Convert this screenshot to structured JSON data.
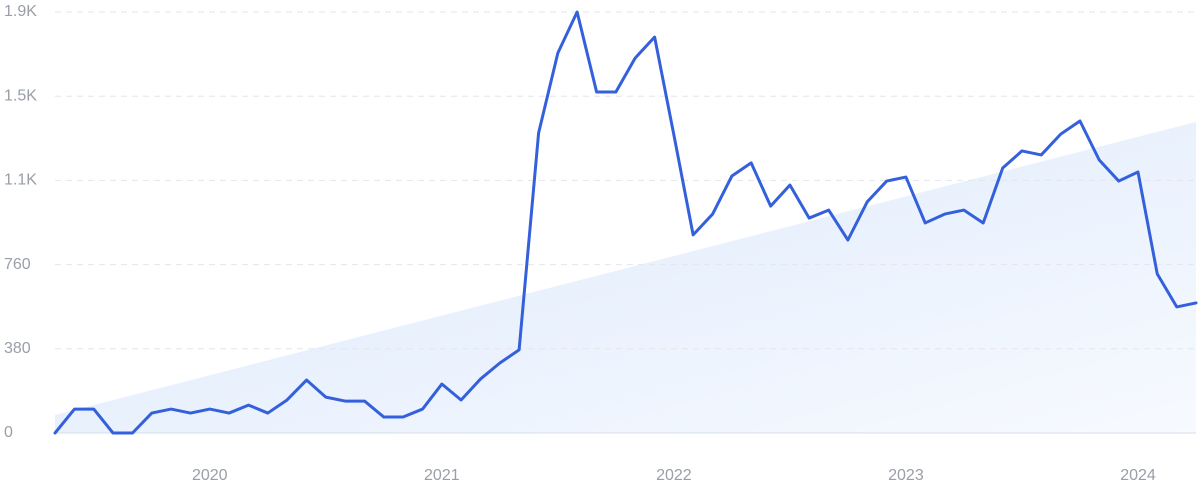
{
  "chart_data": {
    "type": "line",
    "x": [
      2019.333,
      2019.417,
      2019.5,
      2019.583,
      2019.667,
      2019.75,
      2019.833,
      2019.917,
      2020,
      2020.083,
      2020.167,
      2020.25,
      2020.333,
      2020.417,
      2020.5,
      2020.583,
      2020.667,
      2020.75,
      2020.833,
      2020.917,
      2021,
      2021.083,
      2021.167,
      2021.25,
      2021.333,
      2021.417,
      2021.5,
      2021.583,
      2021.667,
      2021.75,
      2021.833,
      2021.917,
      2022,
      2022.083,
      2022.167,
      2022.25,
      2022.333,
      2022.417,
      2022.5,
      2022.583,
      2022.667,
      2022.75,
      2022.833,
      2022.917,
      2023,
      2023.083,
      2023.167,
      2023.25,
      2023.333,
      2023.417,
      2023.5,
      2023.583,
      2023.667,
      2023.75,
      2023.833,
      2023.917,
      2024,
      2024.083,
      2024.167,
      2024.25
    ],
    "series": [
      {
        "color": "#3461db",
        "values": [
          0,
          108,
          108,
          0,
          0,
          90,
          108,
          90,
          108,
          90,
          126,
          90,
          149,
          239,
          162,
          144,
          144,
          72,
          72,
          108,
          221,
          149,
          244,
          316,
          375,
          1354,
          1715,
          1900,
          1539,
          1539,
          1692,
          1787,
          1345,
          894,
          988,
          1160,
          1219,
          1024,
          1119,
          970,
          1006,
          871,
          1043,
          1137,
          1155,
          948,
          988,
          1006,
          948,
          1196,
          1273,
          1255,
          1349,
          1408,
          1232,
          1137,
          1178,
          718,
          569,
          587
        ]
      }
    ],
    "trend": [
      81,
      1404
    ],
    "xlim": [
      2019.333,
      2024.25
    ],
    "xticks": [
      2020,
      2021,
      2022,
      2023,
      2024
    ],
    "ylim": [
      0,
      1900
    ],
    "yticks": [
      0,
      380,
      760,
      {
        "value": 1140,
        "label": "1.1K"
      },
      {
        "value": 1520,
        "label": "1.5K"
      },
      {
        "value": 1900,
        "label": "1.9K"
      }
    ],
    "grid": true
  }
}
